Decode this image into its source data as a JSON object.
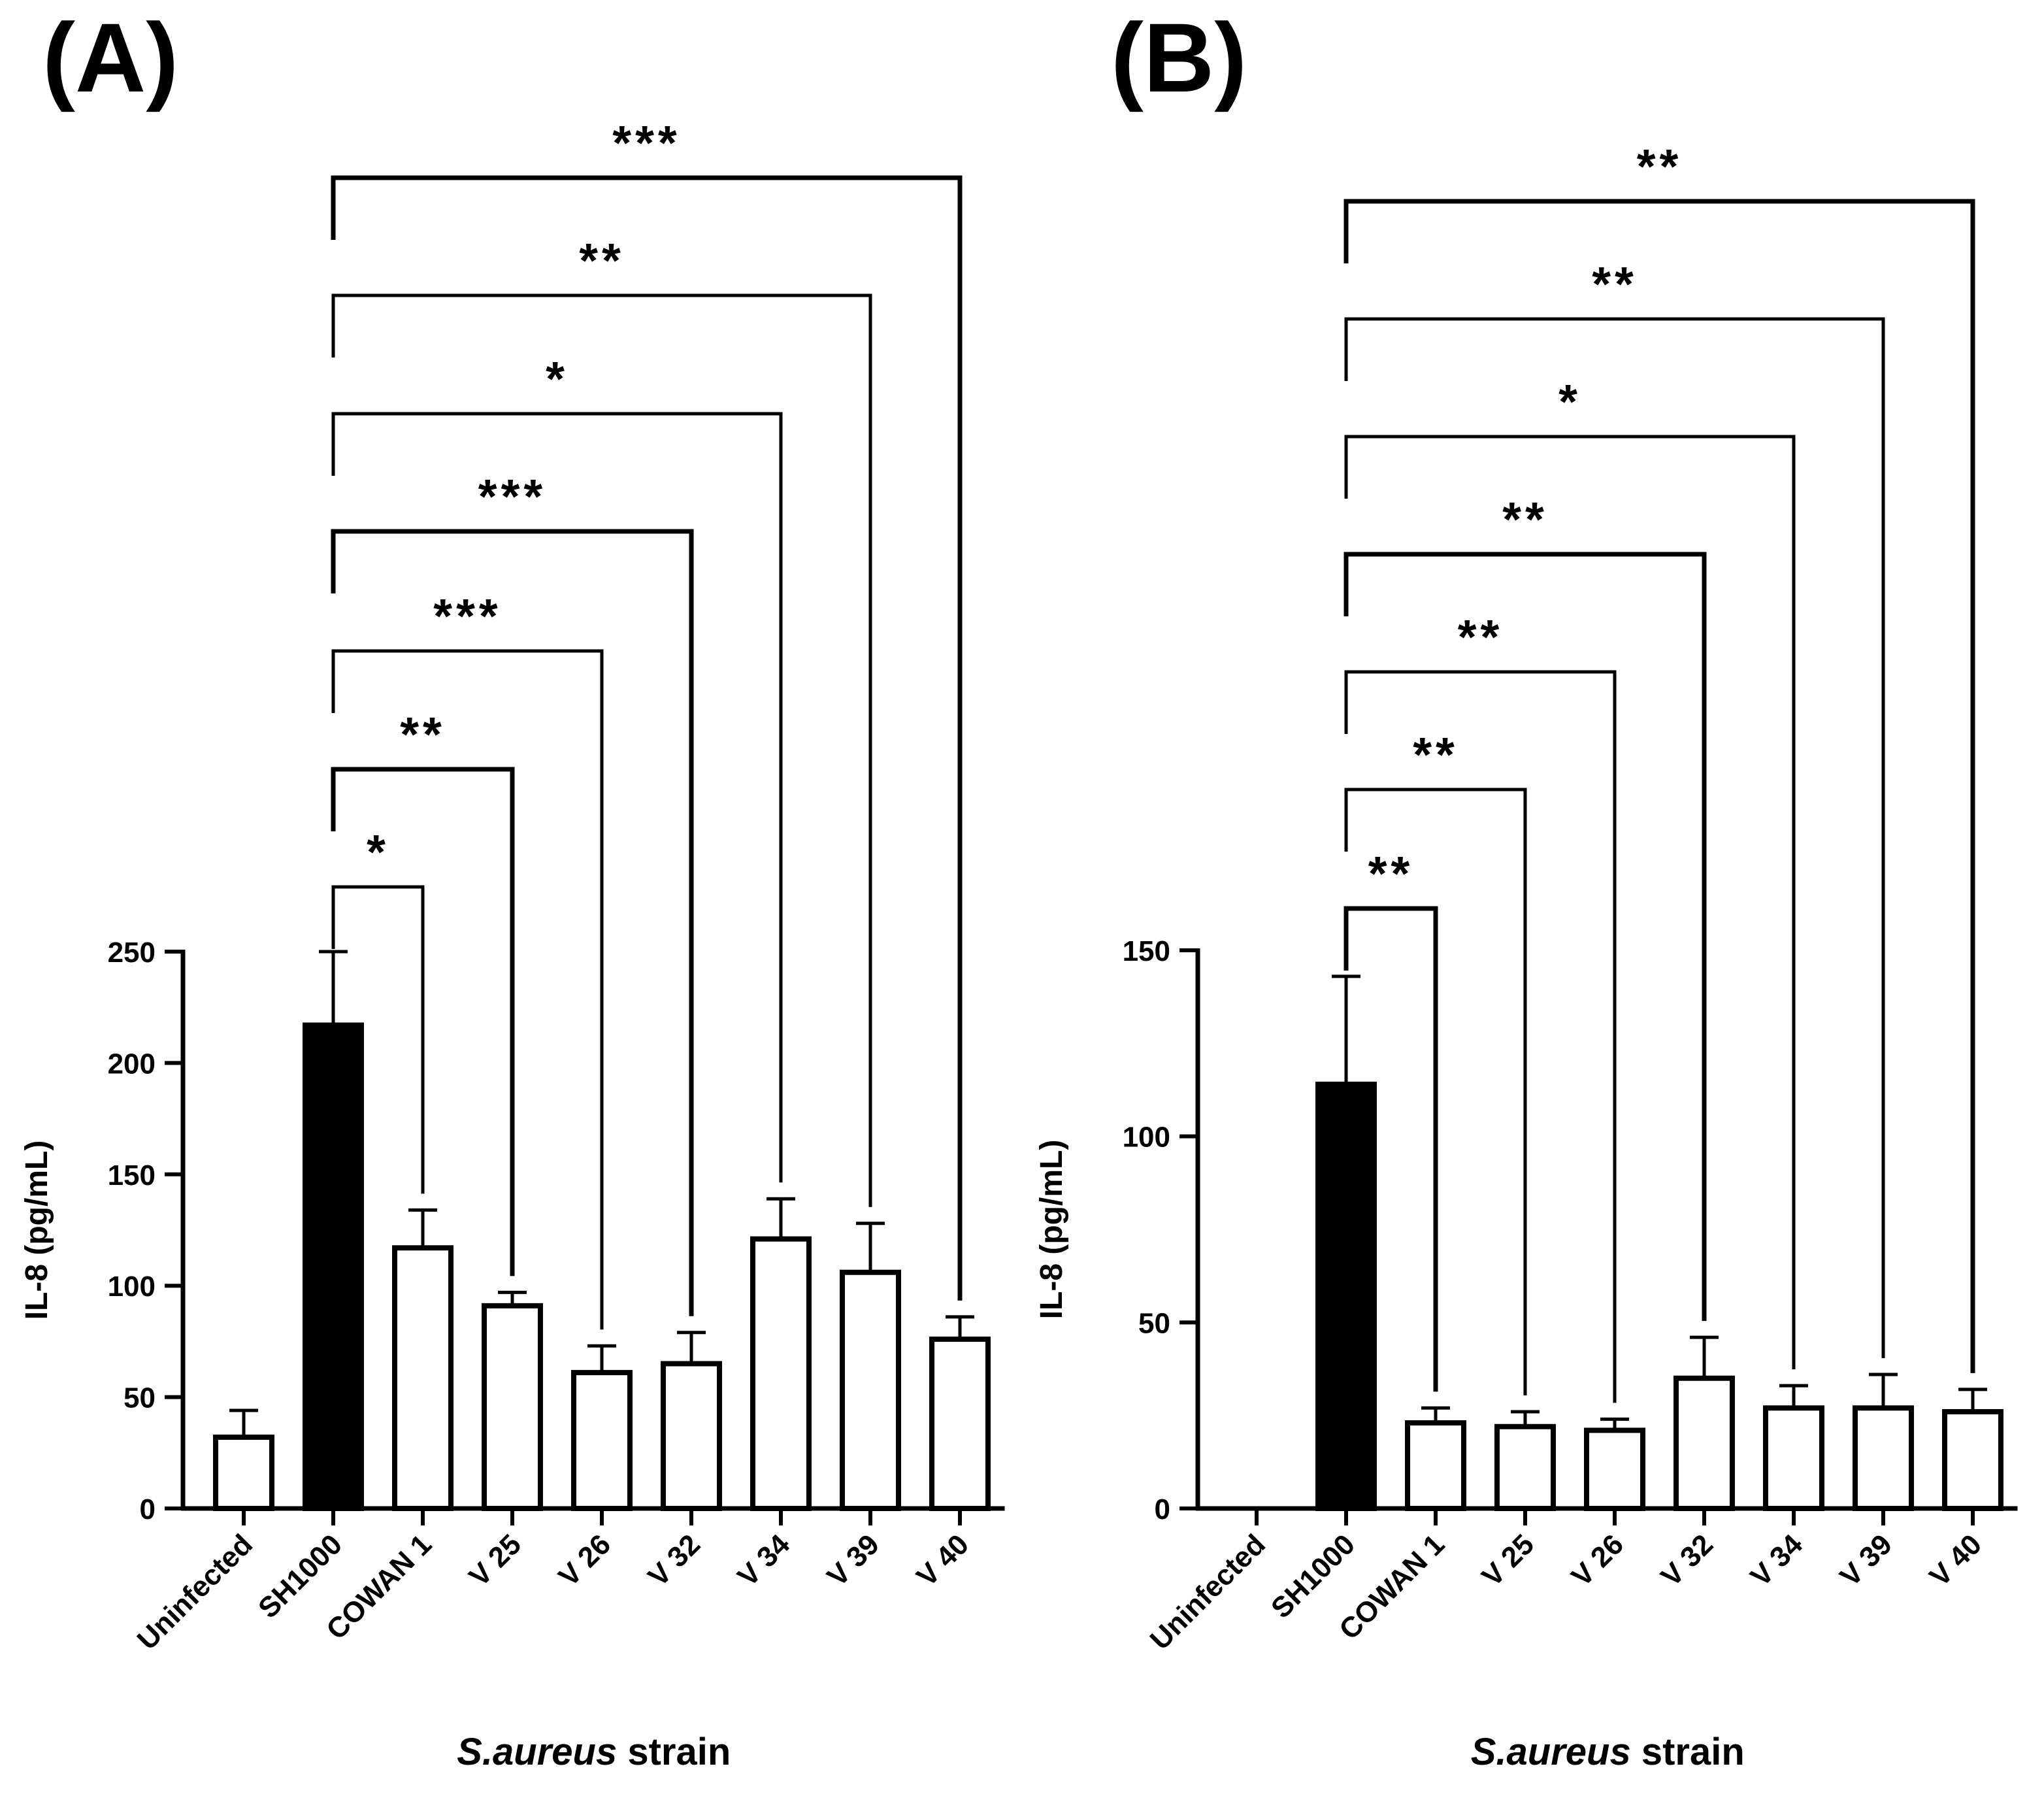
{
  "chart_data": [
    {
      "panel_label": "(A)",
      "type": "bar",
      "categories": [
        "Uninfected",
        "SH1000",
        "COWAN 1",
        "V 25",
        "V 26",
        "V 32",
        "V 34",
        "V 39",
        "V 40"
      ],
      "values": [
        32,
        217,
        117,
        91,
        61,
        65,
        121,
        106,
        76
      ],
      "errors": [
        12,
        33,
        17,
        6,
        12,
        14,
        18,
        22,
        10
      ],
      "bar_fills": [
        "#ffffff",
        "#000000",
        "#ffffff",
        "#ffffff",
        "#ffffff",
        "#ffffff",
        "#ffffff",
        "#ffffff",
        "#ffffff"
      ],
      "ylabel": "IL-8 (pg/mL)",
      "xlabel_italic": "S.aureus",
      "xlabel_rest": " strain",
      "ylim": [
        0,
        250
      ],
      "yticks": [
        "0",
        "50",
        "100",
        "150",
        "200",
        "250"
      ],
      "significance": [
        {
          "from": "SH1000",
          "to": "COWAN 1",
          "label": "*"
        },
        {
          "from": "SH1000",
          "to": "V 25",
          "label": "**"
        },
        {
          "from": "SH1000",
          "to": "V 26",
          "label": "***"
        },
        {
          "from": "SH1000",
          "to": "V 32",
          "label": "***"
        },
        {
          "from": "SH1000",
          "to": "V 34",
          "label": "*"
        },
        {
          "from": "SH1000",
          "to": "V 39",
          "label": "**"
        },
        {
          "from": "SH1000",
          "to": "V 40",
          "label": "***"
        }
      ]
    },
    {
      "panel_label": "(B)",
      "type": "bar",
      "categories": [
        "Uninfected",
        "SH1000",
        "COWAN 1",
        "V 25",
        "V 26",
        "V 32",
        "V 34",
        "V 39",
        "V 40"
      ],
      "values": [
        0,
        114,
        23,
        22,
        21,
        35,
        27,
        27,
        26
      ],
      "errors": [
        0,
        29,
        4,
        4,
        3,
        11,
        6,
        9,
        6
      ],
      "bar_fills": [
        "#ffffff",
        "#000000",
        "#ffffff",
        "#ffffff",
        "#ffffff",
        "#ffffff",
        "#ffffff",
        "#ffffff",
        "#ffffff"
      ],
      "ylabel": "IL-8 (pg/mL)",
      "xlabel_italic": "S.aureus",
      "xlabel_rest": " strain",
      "ylim": [
        0,
        150
      ],
      "yticks": [
        "0",
        "50",
        "100",
        "150"
      ],
      "significance": [
        {
          "from": "SH1000",
          "to": "COWAN 1",
          "label": "**"
        },
        {
          "from": "SH1000",
          "to": "V 25",
          "label": "**"
        },
        {
          "from": "SH1000",
          "to": "V 26",
          "label": "**"
        },
        {
          "from": "SH1000",
          "to": "V 32",
          "label": "**"
        },
        {
          "from": "SH1000",
          "to": "V 34",
          "label": "*"
        },
        {
          "from": "SH1000",
          "to": "V 39",
          "label": "**"
        },
        {
          "from": "SH1000",
          "to": "V 40",
          "label": "**"
        }
      ]
    }
  ]
}
